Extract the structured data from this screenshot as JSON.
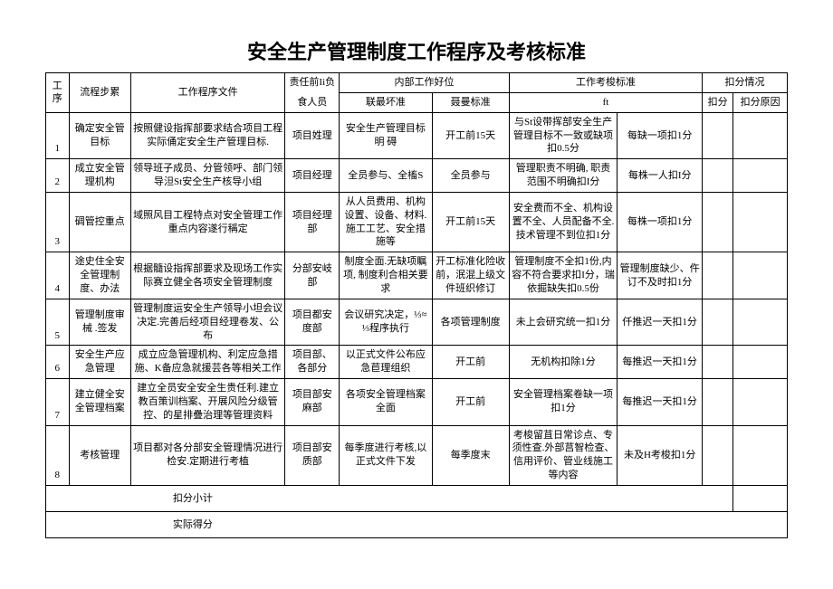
{
  "title": "安全生产管理制度工作程序及考核标准",
  "headers": {
    "seq": "工序",
    "step": "流程步累",
    "doc": "工作程序文件",
    "resp_group": "责任前Ii负",
    "resp_sub": "食人员",
    "internal_group": "内部工作好位",
    "worst": "联最坏准",
    "bad": "聂曼标准",
    "assess_group": "工作考梭标准",
    "ft": "ft",
    "deduct_group": "扣分情况",
    "score": "扣分",
    "reason": "扣分原因"
  },
  "rows": [
    {
      "seq": "1",
      "step": "确定安全管目标",
      "doc": "按照健设指挥部要求结合项目工程实际俑定安全生产管理目标.",
      "resp": "项目姓理",
      "worst": "安全生产管理目标明 碍",
      "bad": "开工前15天",
      "ft": "与St设带挥部安全生产管理目标不一致或缺项扣0.5分",
      "ft2": "每缺一项扣1分"
    },
    {
      "seq": "2",
      "step": "成立安全管理机构",
      "doc": "领导班子成员、分管领呼、部门领导泹St安仝生产核导小组",
      "resp": "项目经理",
      "worst": "全员参与、全槒S",
      "bad": "全员参与",
      "ft": "管理职责不明确, 职责范围不明确扣I分",
      "ft2": "每株一人扣I分"
    },
    {
      "seq": "3",
      "step": "碉管控重点",
      "doc": "域照风目工程特点对安全管理工作重点内容遂行稱定",
      "resp": "项目经理部",
      "worst": "从人员费用、机构设置、设备、材料.施工工艺、安全措施等",
      "bad": "开工前15天",
      "ft": "安全费而不全、机构设置不全、人员配备不全.技术管理不到位扣1分",
      "ft2": "每株一项扣1分"
    },
    {
      "seq": "4",
      "step": "途史住全安全管理制度、办法",
      "doc": "根据髓设指挥部要求及现场工作实际赛立健全各项安全管理制度",
      "resp": "分部安岐部",
      "worst": "制度全面.无缺项瞩项, 制度利合相关要求",
      "bad": "开工标准化险收前，泯混上级文件班织修订",
      "ft": "管理制度不全扣1份,内容不符合要求扣I分，瑞依掘缺失扣0.5份",
      "ft2": "管理制度缺少、仵订不及时扣1分"
    },
    {
      "seq": "5",
      "step": "管理制度审械 .签发",
      "doc": "管理制度运安全生产领导小坦会议决定.完善后经项目经理卷发、公布",
      "resp": "项目都安度部",
      "worst": "会议研究决定，⅓≈⅓程序执行",
      "bad": "各项管理制度",
      "ft": "未上会研究统一扣1分",
      "ft2": "仟推迟一天扣1分"
    },
    {
      "seq": "6",
      "step": "安全生产应急管理",
      "doc": "成立应急管理机构、利定应急措施、K备应急就援芸各等相关工作",
      "resp": "项目部、各部分",
      "worst": "以正式文件公布应急苣理组织",
      "bad": "开工前",
      "ft": "无机构扣除1分",
      "ft2": "每推迟一天扣1分"
    },
    {
      "seq": "7",
      "step": "建立健全安全管理档案",
      "doc": "建立全员安全安全生贵任利.建立教百策训档案、开展风险分级管控、的星排疊治理等管理资料",
      "resp": "项目部安麻部",
      "worst": "各项安全管理档案全面",
      "bad": "开工前",
      "ft": "安全管理档案卷缺一项扣1分",
      "ft2": "每推迟一天扣1分"
    },
    {
      "seq": "8",
      "step": "考核管理",
      "doc": "项目都对各分部安全管理情况进行检安.定期进行考植",
      "resp": "项目部安质部",
      "worst": "每季度进行考核,以正式文件下发",
      "bad": "每季度末",
      "ft": "考梭留苴日常诊点、专须性查.外部莒智检查、信用评价、管业线施工等内容",
      "ft2": "未及H考梭扣1分"
    }
  ],
  "footer": {
    "subtotal": "扣分小计",
    "actual": "实际得分"
  }
}
